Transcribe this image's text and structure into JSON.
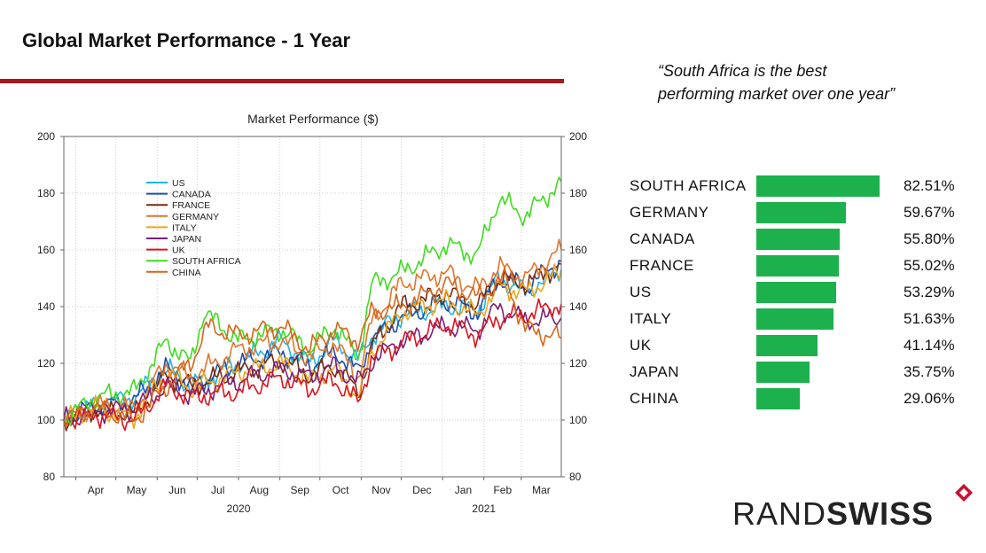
{
  "slide": {
    "title": "Global Market Performance - 1 Year",
    "accent_color": "#a6191e",
    "quote": "“South Africa is the best performing market over one year”"
  },
  "ranking": {
    "bar_color": "#1db14e",
    "items": [
      {
        "name": "SOUTH AFRICA",
        "value": 82.51,
        "label": "82.51%"
      },
      {
        "name": "GERMANY",
        "value": 59.67,
        "label": "59.67%"
      },
      {
        "name": "CANADA",
        "value": 55.8,
        "label": "55.80%"
      },
      {
        "name": "FRANCE",
        "value": 55.02,
        "label": "55.02%"
      },
      {
        "name": "US",
        "value": 53.29,
        "label": "53.29%"
      },
      {
        "name": "ITALY",
        "value": 51.63,
        "label": "51.63%"
      },
      {
        "name": "UK",
        "value": 41.14,
        "label": "41.14%"
      },
      {
        "name": "JAPAN",
        "value": 35.75,
        "label": "35.75%"
      },
      {
        "name": "CHINA",
        "value": 29.06,
        "label": "29.06%"
      }
    ]
  },
  "chart_data": {
    "type": "line",
    "title": "Market Performance ($)",
    "ylim": [
      80,
      200
    ],
    "yticks": [
      80,
      100,
      120,
      140,
      160,
      180,
      200
    ],
    "y_axis_sides": [
      "left",
      "right"
    ],
    "grid": true,
    "legend_position": "top-left",
    "x_range": [
      "2020-03-23",
      "2021-03-31"
    ],
    "x_ticks": [
      {
        "date": "2020-04-01",
        "label": "Apr"
      },
      {
        "date": "2020-05-01",
        "label": "May"
      },
      {
        "date": "2020-06-01",
        "label": "Jun"
      },
      {
        "date": "2020-07-01",
        "label": "Jul"
      },
      {
        "date": "2020-08-01",
        "label": "Aug"
      },
      {
        "date": "2020-09-01",
        "label": "Sep"
      },
      {
        "date": "2020-10-01",
        "label": "Oct"
      },
      {
        "date": "2020-11-01",
        "label": "Nov"
      },
      {
        "date": "2020-12-01",
        "label": "Dec"
      },
      {
        "date": "2021-01-01",
        "label": "Jan"
      },
      {
        "date": "2021-02-01",
        "label": "Feb"
      },
      {
        "date": "2021-03-01",
        "label": "Mar"
      }
    ],
    "year_labels": [
      {
        "date": "2020-08-01",
        "label": "2020"
      },
      {
        "date": "2021-02-01",
        "label": "2021"
      }
    ],
    "series": [
      {
        "name": "US",
        "color": "#1fb5e6",
        "points": [
          [
            "2020-03-23",
            100
          ],
          [
            "2020-04-15",
            105
          ],
          [
            "2020-05-15",
            108
          ],
          [
            "2020-06-08",
            118
          ],
          [
            "2020-06-26",
            112
          ],
          [
            "2020-08-01",
            120
          ],
          [
            "2020-09-02",
            128
          ],
          [
            "2020-09-23",
            120
          ],
          [
            "2020-10-12",
            128
          ],
          [
            "2020-10-30",
            121
          ],
          [
            "2020-11-09",
            130
          ],
          [
            "2020-12-01",
            137
          ],
          [
            "2021-01-04",
            140
          ],
          [
            "2021-01-27",
            139
          ],
          [
            "2021-02-12",
            150
          ],
          [
            "2021-03-04",
            145
          ],
          [
            "2021-03-31",
            153
          ]
        ]
      },
      {
        "name": "CANADA",
        "color": "#1f4ea8",
        "points": [
          [
            "2020-03-23",
            100
          ],
          [
            "2020-04-15",
            105
          ],
          [
            "2020-05-15",
            107
          ],
          [
            "2020-06-08",
            118
          ],
          [
            "2020-06-26",
            112
          ],
          [
            "2020-08-01",
            120
          ],
          [
            "2020-09-02",
            124
          ],
          [
            "2020-09-23",
            119
          ],
          [
            "2020-10-12",
            124
          ],
          [
            "2020-10-30",
            117
          ],
          [
            "2020-11-09",
            128
          ],
          [
            "2020-12-01",
            136
          ],
          [
            "2021-01-04",
            142
          ],
          [
            "2021-01-27",
            138
          ],
          [
            "2021-02-12",
            150
          ],
          [
            "2021-03-04",
            147
          ],
          [
            "2021-03-31",
            156
          ]
        ]
      },
      {
        "name": "FRANCE",
        "color": "#7a2b10",
        "points": [
          [
            "2020-03-23",
            100
          ],
          [
            "2020-04-15",
            104
          ],
          [
            "2020-05-15",
            102
          ],
          [
            "2020-06-08",
            116
          ],
          [
            "2020-06-26",
            112
          ],
          [
            "2020-08-01",
            117
          ],
          [
            "2020-09-02",
            121
          ],
          [
            "2020-09-23",
            116
          ],
          [
            "2020-10-12",
            119
          ],
          [
            "2020-10-30",
            110
          ],
          [
            "2020-11-09",
            126
          ],
          [
            "2020-12-01",
            140
          ],
          [
            "2021-01-04",
            145
          ],
          [
            "2021-01-27",
            140
          ],
          [
            "2021-02-12",
            150
          ],
          [
            "2021-03-04",
            148
          ],
          [
            "2021-03-31",
            155
          ]
        ]
      },
      {
        "name": "GERMANY",
        "color": "#e2752b",
        "points": [
          [
            "2020-03-23",
            100
          ],
          [
            "2020-04-15",
            105
          ],
          [
            "2020-05-15",
            104
          ],
          [
            "2020-06-08",
            120
          ],
          [
            "2020-06-26",
            115
          ],
          [
            "2020-08-01",
            125
          ],
          [
            "2020-09-02",
            128
          ],
          [
            "2020-09-23",
            122
          ],
          [
            "2020-10-12",
            127
          ],
          [
            "2020-10-30",
            115
          ],
          [
            "2020-11-09",
            135
          ],
          [
            "2020-12-01",
            148
          ],
          [
            "2021-01-04",
            152
          ],
          [
            "2021-01-27",
            146
          ],
          [
            "2021-02-12",
            154
          ],
          [
            "2021-03-04",
            150
          ],
          [
            "2021-03-31",
            160
          ]
        ]
      },
      {
        "name": "ITALY",
        "color": "#f0a51e",
        "points": [
          [
            "2020-03-23",
            100
          ],
          [
            "2020-04-15",
            104
          ],
          [
            "2020-05-15",
            101
          ],
          [
            "2020-06-08",
            117
          ],
          [
            "2020-06-26",
            111
          ],
          [
            "2020-08-01",
            117
          ],
          [
            "2020-09-02",
            120
          ],
          [
            "2020-09-23",
            114
          ],
          [
            "2020-10-12",
            118
          ],
          [
            "2020-10-30",
            108
          ],
          [
            "2020-11-09",
            124
          ],
          [
            "2020-12-01",
            138
          ],
          [
            "2021-01-04",
            142
          ],
          [
            "2021-01-27",
            137
          ],
          [
            "2021-02-12",
            147
          ],
          [
            "2021-03-04",
            145
          ],
          [
            "2021-03-31",
            152
          ]
        ]
      },
      {
        "name": "JAPAN",
        "color": "#7b1f78",
        "points": [
          [
            "2020-03-23",
            100
          ],
          [
            "2020-04-15",
            103
          ],
          [
            "2020-05-15",
            104
          ],
          [
            "2020-06-08",
            112
          ],
          [
            "2020-06-26",
            109
          ],
          [
            "2020-08-01",
            114
          ],
          [
            "2020-09-02",
            118
          ],
          [
            "2020-09-23",
            115
          ],
          [
            "2020-10-12",
            119
          ],
          [
            "2020-10-30",
            113
          ],
          [
            "2020-11-09",
            121
          ],
          [
            "2020-12-01",
            128
          ],
          [
            "2021-01-04",
            133
          ],
          [
            "2021-01-27",
            132
          ],
          [
            "2021-02-12",
            140
          ],
          [
            "2021-03-04",
            135
          ],
          [
            "2021-03-31",
            136
          ]
        ]
      },
      {
        "name": "UK",
        "color": "#d9141e",
        "points": [
          [
            "2020-03-23",
            100
          ],
          [
            "2020-04-15",
            102
          ],
          [
            "2020-05-15",
            100
          ],
          [
            "2020-06-08",
            112
          ],
          [
            "2020-06-26",
            108
          ],
          [
            "2020-08-01",
            110
          ],
          [
            "2020-09-02",
            115
          ],
          [
            "2020-09-23",
            111
          ],
          [
            "2020-10-12",
            114
          ],
          [
            "2020-10-30",
            106
          ],
          [
            "2020-11-09",
            122
          ],
          [
            "2020-12-01",
            127
          ],
          [
            "2021-01-04",
            134
          ],
          [
            "2021-01-27",
            130
          ],
          [
            "2021-02-12",
            136
          ],
          [
            "2021-03-04",
            137
          ],
          [
            "2021-03-31",
            141
          ]
        ]
      },
      {
        "name": "SOUTH AFRICA",
        "color": "#3fdc1e",
        "points": [
          [
            "2020-03-23",
            100
          ],
          [
            "2020-04-15",
            108
          ],
          [
            "2020-05-15",
            110
          ],
          [
            "2020-06-08",
            128
          ],
          [
            "2020-06-26",
            120
          ],
          [
            "2020-07-06",
            138
          ],
          [
            "2020-08-01",
            128
          ],
          [
            "2020-09-02",
            132
          ],
          [
            "2020-09-23",
            125
          ],
          [
            "2020-10-12",
            133
          ],
          [
            "2020-10-30",
            122
          ],
          [
            "2020-11-09",
            148
          ],
          [
            "2020-12-01",
            152
          ],
          [
            "2021-01-04",
            162
          ],
          [
            "2021-01-27",
            158
          ],
          [
            "2021-02-12",
            178
          ],
          [
            "2021-03-04",
            172
          ],
          [
            "2021-03-31",
            184
          ]
        ]
      },
      {
        "name": "CHINA",
        "color": "#d8651a",
        "points": [
          [
            "2020-03-23",
            100
          ],
          [
            "2020-04-15",
            104
          ],
          [
            "2020-05-15",
            100
          ],
          [
            "2020-06-08",
            112
          ],
          [
            "2020-06-26",
            120
          ],
          [
            "2020-07-09",
            133
          ],
          [
            "2020-08-01",
            130
          ],
          [
            "2020-09-02",
            133
          ],
          [
            "2020-09-23",
            125
          ],
          [
            "2020-10-12",
            132
          ],
          [
            "2020-10-30",
            128
          ],
          [
            "2020-11-09",
            138
          ],
          [
            "2020-12-01",
            140
          ],
          [
            "2021-01-04",
            148
          ],
          [
            "2021-01-27",
            143
          ],
          [
            "2021-02-17",
            150
          ],
          [
            "2021-03-04",
            132
          ],
          [
            "2021-03-31",
            129
          ]
        ]
      }
    ]
  }
}
